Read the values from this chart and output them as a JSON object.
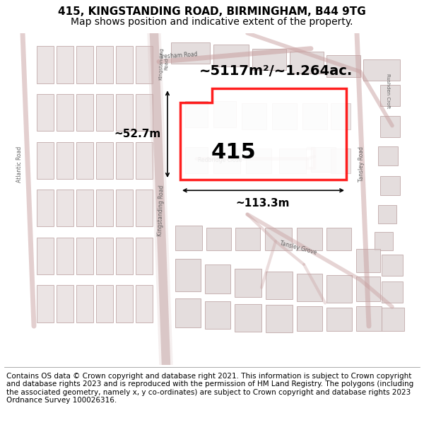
{
  "title": "415, KINGSTANDING ROAD, BIRMINGHAM, B44 9TG",
  "subtitle": "Map shows position and indicative extent of the property.",
  "footer": "Contains OS data © Crown copyright and database right 2021. This information is subject to Crown copyright and database rights 2023 and is reproduced with the permission of HM Land Registry. The polygons (including the associated geometry, namely x, y co-ordinates) are subject to Crown copyright and database rights 2023 Ordnance Survey 100026316.",
  "area_label": "~5117m²/~1.264ac.",
  "width_label": "~113.3m",
  "height_label": "~52.7m",
  "plot_number": "415",
  "map_bg": "#f2eded",
  "highlight_color": "#ff0000",
  "highlight_lw": 2.5,
  "title_fontsize": 11,
  "subtitle_fontsize": 10,
  "footer_fontsize": 7.5,
  "road_color": "#c8a0a0",
  "building_fill": "#e8e0e0",
  "building_stroke": "#c0a8a8"
}
